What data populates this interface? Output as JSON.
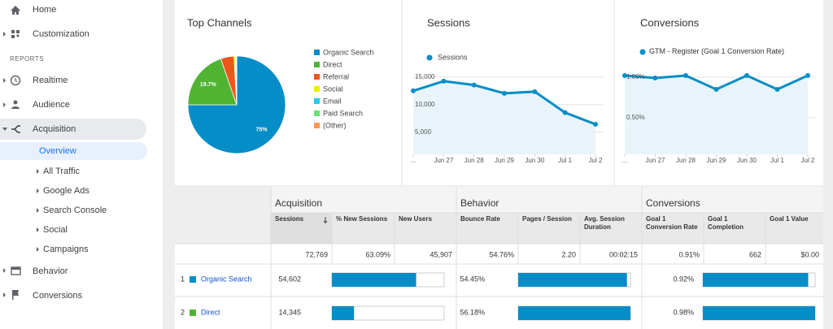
{
  "sidebar": {
    "top": [
      "Home",
      "Customization"
    ],
    "section_label": "REPORTS",
    "reports": [
      "Realtime",
      "Audience",
      "Acquisition"
    ],
    "acquisition_children": [
      "Overview",
      "All Traffic",
      "Google Ads",
      "Search Console",
      "Social",
      "Campaigns"
    ],
    "bottom": [
      "Behavior",
      "Conversions"
    ]
  },
  "chart_data": [
    {
      "type": "pie",
      "title": "Top Channels",
      "categories": [
        "Organic Search",
        "Direct",
        "Referral",
        "Social",
        "Email",
        "Paid Search",
        "(Other)"
      ],
      "values": [
        75,
        19.7,
        4.4,
        0.5,
        0.2,
        0.1,
        0.1
      ],
      "value_labels": [
        "75%",
        "19.7%",
        null,
        null,
        null,
        null,
        null
      ],
      "colors": [
        "#058dc7",
        "#50b432",
        "#ed561b",
        "#edef00",
        "#24cbe5",
        "#64e572",
        "#ff9655"
      ]
    },
    {
      "type": "line",
      "title": "Sessions",
      "categories": [
        "...",
        "Jun 27",
        "Jun 28",
        "Jun 29",
        "Jun 30",
        "Jul 1",
        "Jul 2"
      ],
      "series": [
        {
          "name": "Sessions",
          "color": "#058dc7",
          "values": [
            12500,
            14250,
            13550,
            12050,
            12350,
            8550,
            6450
          ]
        }
      ],
      "ylim": [
        1000,
        16000
      ],
      "yticks": [
        {
          "value": 5000,
          "label": "5,000"
        },
        {
          "value": 10000,
          "label": "10,000"
        },
        {
          "value": 15000,
          "label": "15,000"
        }
      ],
      "grid": true
    },
    {
      "type": "line",
      "title": "Conversions",
      "categories": [
        "...",
        "Jun 27",
        "Jun 28",
        "Jun 29",
        "Jun 30",
        "Jul 1",
        "Jul 2"
      ],
      "series": [
        {
          "name": "GTM - Register (Goal 1 Conversion Rate)",
          "color": "#058dc7",
          "values": [
            1.02,
            0.99,
            1.02,
            0.85,
            1.02,
            0.85,
            1.02
          ]
        }
      ],
      "ylim": [
        0.05,
        1.1
      ],
      "yticks": [
        {
          "value": 0.5,
          "label": "0.50%"
        },
        {
          "value": 1,
          "label": "1.00%"
        }
      ],
      "grid": true
    }
  ],
  "table": {
    "groups": [
      "Acquisition",
      "Behavior",
      "Conversions"
    ],
    "columns": [
      "Sessions",
      "% New Sessions",
      "New Users",
      "Bounce Rate",
      "Pages / Session",
      "Avg. Session Duration",
      "Goal 1 Conversion Rate",
      "Goal 1 Completion",
      "Goal 1 Value"
    ],
    "totals": [
      "72,769",
      "63.09%",
      "45,907",
      "54.76%",
      "2.20",
      "00:02:15",
      "0.91%",
      "662",
      "$0.00"
    ],
    "bar_color": "#058dc7",
    "rows": [
      {
        "rank": "1",
        "channel": "Organic Search",
        "color": "#058dc7",
        "sessions": "54,602",
        "bounce_rate": "54.45%",
        "conversion_rate": "0.92%"
      },
      {
        "rank": "2",
        "channel": "Direct",
        "color": "#50b432",
        "sessions": "14,345",
        "bounce_rate": "56.18%",
        "conversion_rate": "0.98%"
      }
    ]
  }
}
